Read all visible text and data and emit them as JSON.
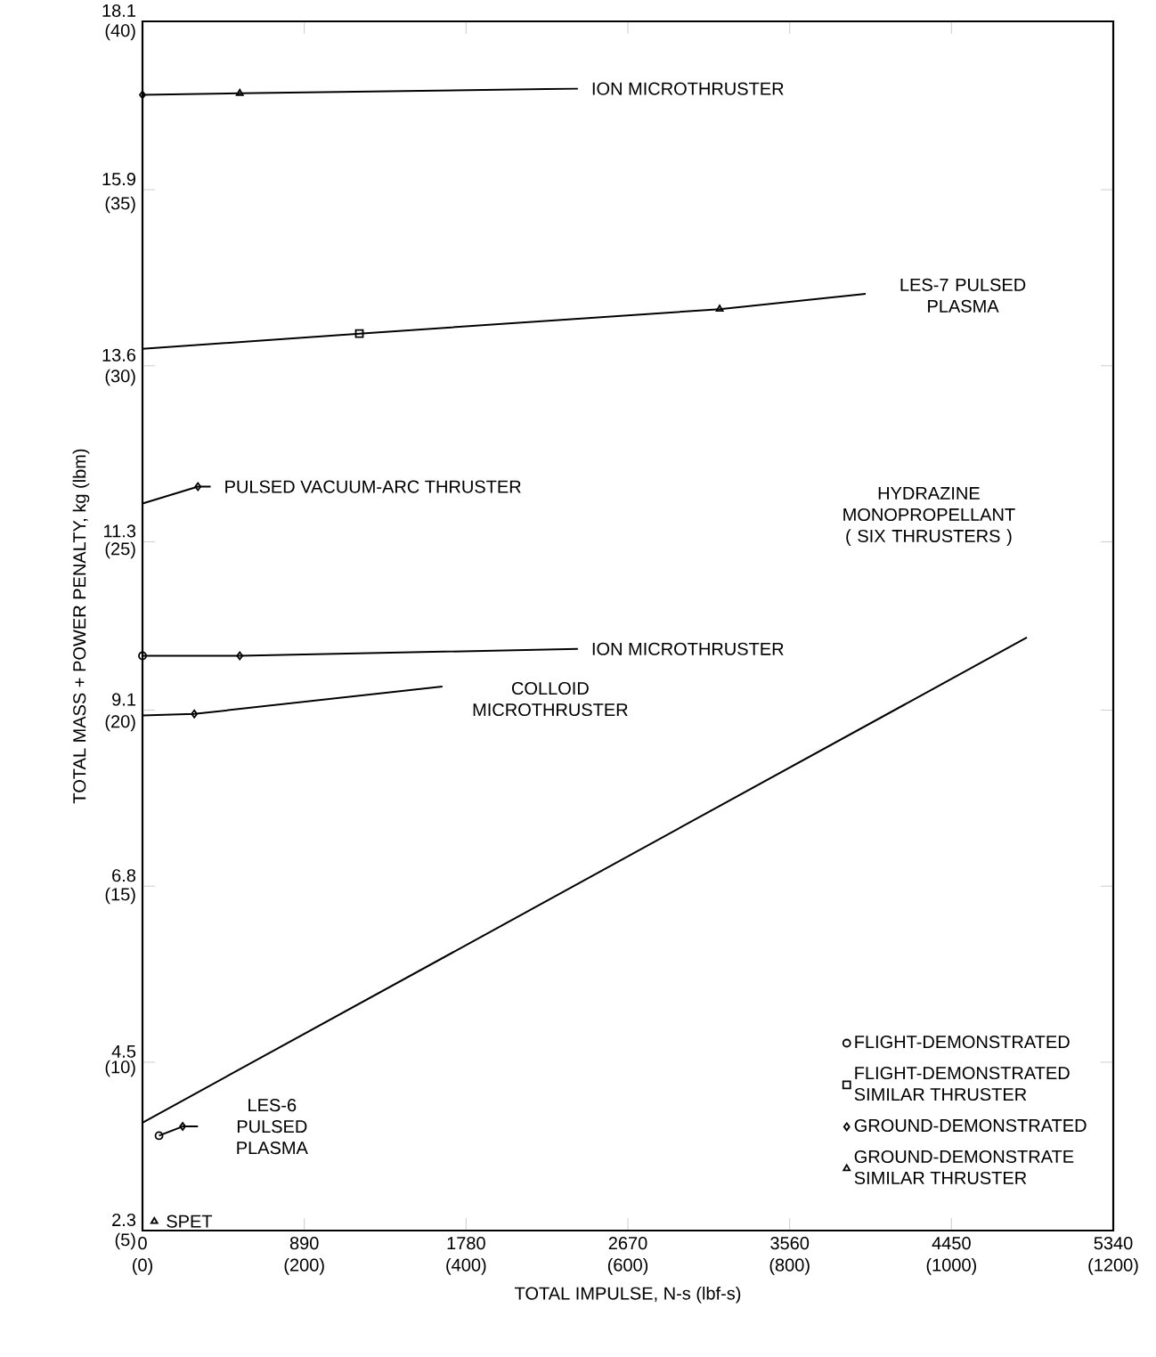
{
  "chart_data": {
    "type": "line",
    "xlabel": "TOTAL IMPULSE, N-s (lbf-s)",
    "ylabel": "TOTAL MASS + POWER PENALTY,  kg (lbm)",
    "xlim": [
      0,
      5340
    ],
    "xticks": [
      0,
      890,
      1780,
      2670,
      3560,
      4450,
      5340
    ],
    "x2lim": [
      0,
      1200
    ],
    "x2ticks": [
      {
        "value": 0,
        "label": "(0)"
      },
      {
        "value": 200,
        "label": "(200)"
      },
      {
        "value": 400,
        "label": "(400)"
      },
      {
        "value": 600,
        "label": "(600)"
      },
      {
        "value": 800,
        "label": "(800)"
      },
      {
        "value": 1000,
        "label": "(1000)"
      },
      {
        "value": 1200,
        "label": "(1200)"
      }
    ],
    "ylim": [
      2.3,
      18.1
    ],
    "yticks": [
      2.3,
      4.5,
      6.8,
      9.1,
      11.3,
      13.6,
      15.9,
      18.1
    ],
    "y2lim": [
      5,
      40
    ],
    "y2ticks": [
      {
        "value": 5,
        "label": "(5)"
      },
      {
        "value": 10,
        "label": "(10)"
      },
      {
        "value": 15,
        "label": "(15)"
      },
      {
        "value": 20,
        "label": "(20)"
      },
      {
        "value": 25,
        "label": "(25)"
      },
      {
        "value": 30,
        "label": "(30)"
      },
      {
        "value": 35,
        "label": "(35)"
      },
      {
        "value": 40,
        "label": "(40)"
      }
    ],
    "series": [
      {
        "color": "#000000",
        "x": [
          0,
          535,
          2395
        ],
        "values": [
          17.14,
          17.16,
          17.22
        ]
      },
      {
        "color": "#000000",
        "x": [
          0,
          1193,
          3175,
          3978
        ],
        "values": [
          13.82,
          14.02,
          14.34,
          14.54
        ]
      },
      {
        "color": "#000000",
        "x": [
          0,
          305,
          375
        ],
        "values": [
          11.8,
          12.02,
          12.02
        ]
      },
      {
        "color": "#000000",
        "x": [
          0,
          535,
          2395
        ],
        "values": [
          9.81,
          9.81,
          9.9
        ]
      },
      {
        "color": "#000000",
        "x": [
          0,
          285,
          1650
        ],
        "values": [
          9.03,
          9.05,
          9.41
        ]
      },
      {
        "color": "#000000",
        "x": [
          0,
          4865
        ],
        "values": [
          3.71,
          10.05
        ]
      },
      {
        "color": "#000000",
        "x": [
          91,
          221,
          305
        ],
        "values": [
          3.54,
          3.66,
          3.66
        ]
      },
      {
        "type": "scatter",
        "name": "FLIGHT-DEMONSTRATED",
        "color": "#000000",
        "marker": "circle",
        "x": [
          0,
          91
        ],
        "values": [
          9.81,
          3.54
        ]
      },
      {
        "type": "scatter",
        "name": "FLIGHT-DEMONSTRATED SIMILAR THRUSTER",
        "color": "#000000",
        "marker": "square",
        "x": [
          1193
        ],
        "values": [
          14.02
        ]
      },
      {
        "type": "scatter",
        "name": "GROUND-DEMONSTRATED",
        "color": "#000000",
        "marker": "diamond",
        "x": [
          0,
          305,
          535,
          285,
          221
        ],
        "values": [
          17.14,
          12.02,
          9.81,
          9.05,
          3.66
        ]
      },
      {
        "type": "scatter",
        "name": "GROUND-DEMONSTRATE SIMILAR THRUSTER",
        "color": "#000000",
        "marker": "triangle",
        "x": [
          535,
          3175,
          65
        ],
        "values": [
          17.16,
          14.34,
          2.42
        ]
      }
    ],
    "legend": "bottom right",
    "annotations": [
      {
        "text": "ION MICROTHRUSTER",
        "x": 2395,
        "y": 17.22
      },
      {
        "text": "LES-7 PULSED PLASMA",
        "x": 3978,
        "y": 14.54
      },
      {
        "text": "PULSED VACUUM-ARC THRUSTER",
        "x": 375,
        "y": 12.02
      },
      {
        "text": "ION MICROTHRUSTER",
        "x": 2395,
        "y": 9.9
      },
      {
        "text": "COLLOID MICROTHRUSTER",
        "x": 1650,
        "y": 9.41
      },
      "HYDRAZINE MONOPROPELLANT ( SIX THRUSTERS )",
      {
        "text": "LES-6 PULSED PLASMA",
        "x": 305,
        "y": 3.66
      },
      {
        "text": "SPET",
        "x": 65,
        "y": 2.42
      }
    ]
  }
}
